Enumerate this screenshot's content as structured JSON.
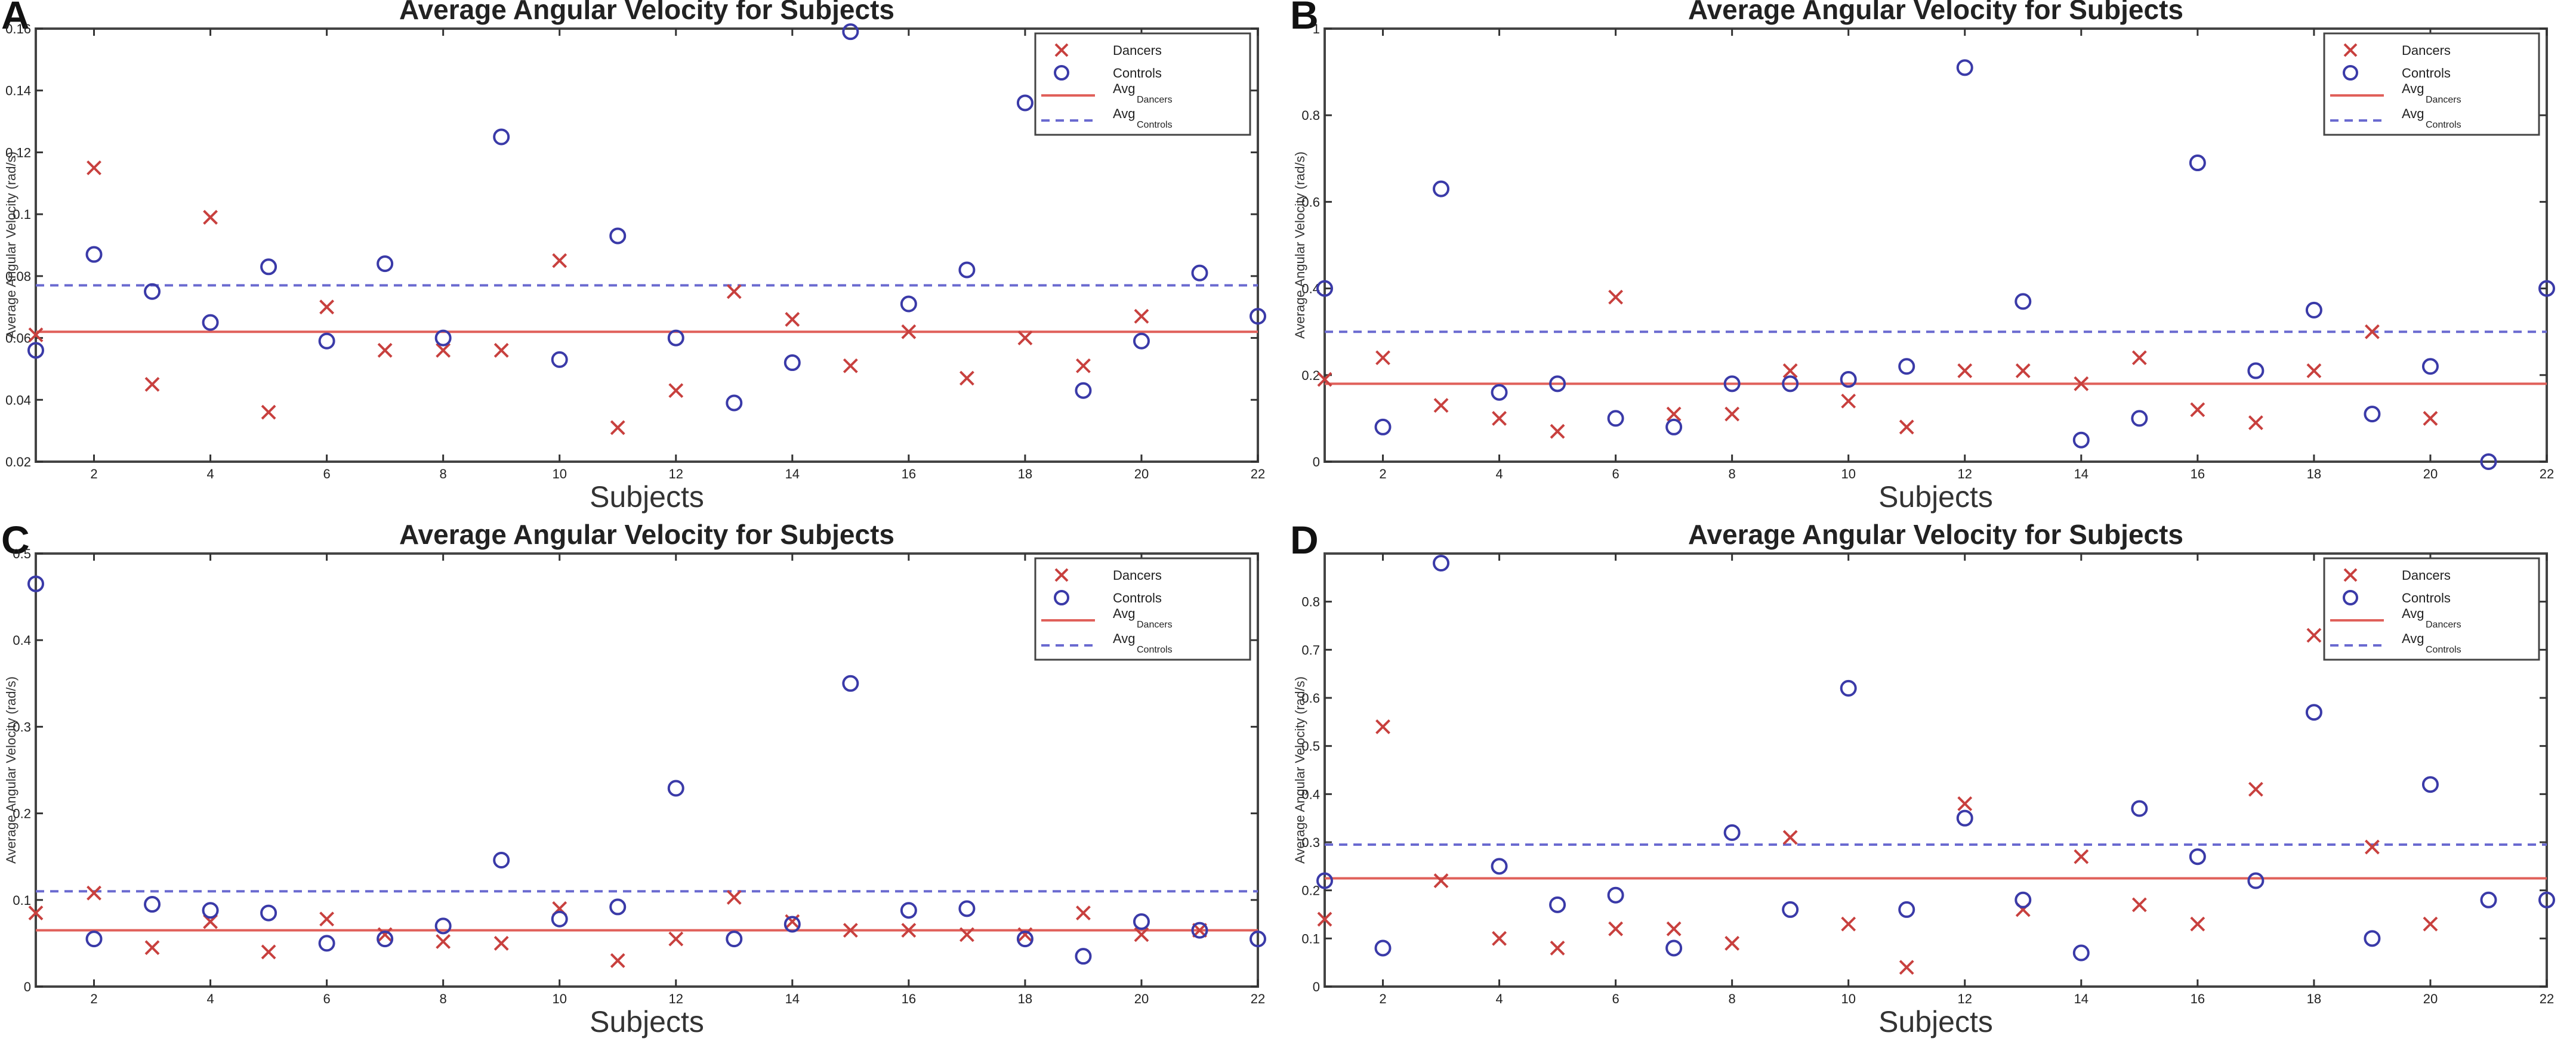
{
  "chart_data": [
    {
      "panel": "A",
      "type": "scatter",
      "title": "Average Angular Velocity for Subjects",
      "xlabel": "Subjects",
      "ylabel": "Average Angular Velocity (rad/s)",
      "xlim": [
        1,
        22
      ],
      "ylim": [
        0.02,
        0.16
      ],
      "xticks": [
        2,
        4,
        6,
        8,
        10,
        12,
        14,
        16,
        18,
        20,
        22
      ],
      "yticks": [
        0.02,
        0.04,
        0.06,
        0.08,
        0.1,
        0.12,
        0.14,
        0.16
      ],
      "ytick_labels": [
        "0.02",
        "0.04",
        "0.06",
        "0.08",
        "0.1",
        "0.12",
        "0.14",
        "0.16"
      ],
      "legend": {
        "dancers": "Dancers",
        "controls": "Controls",
        "avg_base": "Avg",
        "avg_dancers_sub": "Dancers",
        "avg_controls_sub": "Controls"
      },
      "series": [
        {
          "name": "Dancers",
          "marker": "x",
          "x": [
            1,
            2,
            3,
            4,
            5,
            6,
            7,
            8,
            9,
            10,
            11,
            12,
            13,
            14,
            15,
            16,
            17,
            18,
            19,
            20
          ],
          "values": [
            0.061,
            0.115,
            0.045,
            0.099,
            0.036,
            0.07,
            0.056,
            0.056,
            0.056,
            0.085,
            0.031,
            0.043,
            0.075,
            0.066,
            0.051,
            0.062,
            0.047,
            0.06,
            0.051,
            0.067
          ]
        },
        {
          "name": "Controls",
          "marker": "o",
          "x": [
            1,
            2,
            3,
            4,
            5,
            6,
            7,
            8,
            9,
            10,
            11,
            12,
            13,
            14,
            15,
            16,
            17,
            18,
            19,
            20,
            21,
            22
          ],
          "values": [
            0.056,
            0.087,
            0.075,
            0.065,
            0.083,
            0.059,
            0.084,
            0.06,
            0.125,
            0.053,
            0.093,
            0.06,
            0.039,
            0.052,
            0.159,
            0.071,
            0.082,
            0.136,
            0.043,
            0.059,
            0.081,
            0.067
          ]
        }
      ],
      "avg_dancers": 0.062,
      "avg_controls": 0.077
    },
    {
      "panel": "B",
      "type": "scatter",
      "title": "Average Angular Velocity for Subjects",
      "xlabel": "Subjects",
      "ylabel": "Average Angular Velocity (rad/s)",
      "xlim": [
        1,
        22
      ],
      "ylim": [
        0,
        1
      ],
      "xticks": [
        2,
        4,
        6,
        8,
        10,
        12,
        14,
        16,
        18,
        20,
        22
      ],
      "yticks": [
        0,
        0.2,
        0.4,
        0.6,
        0.8,
        1
      ],
      "ytick_labels": [
        "0",
        "0.2",
        "0.4",
        "0.6",
        "0.8",
        "1"
      ],
      "legend": {
        "dancers": "Dancers",
        "controls": "Controls",
        "avg_base": "Avg",
        "avg_dancers_sub": "Dancers",
        "avg_controls_sub": "Controls"
      },
      "series": [
        {
          "name": "Dancers",
          "marker": "x",
          "x": [
            1,
            2,
            3,
            4,
            5,
            6,
            7,
            8,
            9,
            10,
            11,
            12,
            13,
            14,
            15,
            16,
            17,
            18,
            19,
            20
          ],
          "values": [
            0.19,
            0.24,
            0.13,
            0.1,
            0.07,
            0.38,
            0.11,
            0.11,
            0.21,
            0.14,
            0.08,
            0.21,
            0.21,
            0.18,
            0.24,
            0.12,
            0.09,
            0.21,
            0.3,
            0.1
          ]
        },
        {
          "name": "Controls",
          "marker": "o",
          "x": [
            1,
            2,
            3,
            4,
            5,
            6,
            7,
            8,
            9,
            10,
            11,
            12,
            13,
            14,
            15,
            16,
            17,
            18,
            19,
            20,
            21,
            22
          ],
          "values": [
            0.4,
            0.08,
            0.63,
            0.16,
            0.18,
            0.1,
            0.08,
            0.18,
            0.18,
            0.19,
            0.22,
            0.91,
            0.37,
            0.05,
            0.1,
            0.69,
            0.21,
            0.35,
            0.11,
            0.22,
            0,
            0.4
          ]
        }
      ],
      "avg_dancers": 0.18,
      "avg_controls": 0.3
    },
    {
      "panel": "C",
      "type": "scatter",
      "title": "Average Angular Velocity for Subjects",
      "xlabel": "Subjects",
      "ylabel": "Average Angular Velocity (rad/s)",
      "xlim": [
        1,
        22
      ],
      "ylim": [
        0,
        0.5
      ],
      "xticks": [
        2,
        4,
        6,
        8,
        10,
        12,
        14,
        16,
        18,
        20,
        22
      ],
      "yticks": [
        0,
        0.1,
        0.2,
        0.3,
        0.4,
        0.5
      ],
      "ytick_labels": [
        "0",
        "0.1",
        "0.2",
        "0.3",
        "0.4",
        "0.5"
      ],
      "legend": {
        "dancers": "Dancers",
        "controls": "Controls",
        "avg_base": "Avg",
        "avg_dancers_sub": "Dancers",
        "avg_controls_sub": "Controls"
      },
      "series": [
        {
          "name": "Dancers",
          "marker": "x",
          "x": [
            1,
            2,
            3,
            4,
            5,
            6,
            7,
            8,
            9,
            10,
            11,
            12,
            13,
            14,
            15,
            16,
            17,
            18,
            19,
            20,
            21
          ],
          "values": [
            0.085,
            0.108,
            0.045,
            0.075,
            0.04,
            0.078,
            0.06,
            0.052,
            0.05,
            0.09,
            0.03,
            0.055,
            0.103,
            0.075,
            0.065,
            0.065,
            0.06,
            0.06,
            0.085,
            0.06,
            0.065
          ]
        },
        {
          "name": "Controls",
          "marker": "o",
          "x": [
            1,
            2,
            3,
            4,
            5,
            6,
            7,
            8,
            9,
            10,
            11,
            12,
            13,
            14,
            15,
            16,
            17,
            18,
            19,
            20,
            21,
            22
          ],
          "values": [
            0.465,
            0.055,
            0.095,
            0.088,
            0.085,
            0.05,
            0.055,
            0.07,
            0.146,
            0.078,
            0.092,
            0.229,
            0.055,
            0.072,
            0.35,
            0.088,
            0.09,
            0.055,
            0.035,
            0.075,
            0.065,
            0.055
          ]
        }
      ],
      "avg_dancers": 0.065,
      "avg_controls": 0.11
    },
    {
      "panel": "D",
      "type": "scatter",
      "title": "Average Angular Velocity for Subjects",
      "xlabel": "Subjects",
      "ylabel": "Average Angular Velocity (rad/s)",
      "xlim": [
        1,
        22
      ],
      "ylim": [
        0,
        0.9
      ],
      "xticks": [
        2,
        4,
        6,
        8,
        10,
        12,
        14,
        16,
        18,
        20,
        22
      ],
      "yticks": [
        0,
        0.1,
        0.2,
        0.3,
        0.4,
        0.5,
        0.6,
        0.7,
        0.8
      ],
      "ytick_labels": [
        "0",
        "0.1",
        "0.2",
        "0.3",
        "0.4",
        "0.5",
        "0.6",
        "0.7",
        "0.8"
      ],
      "legend": {
        "dancers": "Dancers",
        "controls": "Controls",
        "avg_base": "Avg",
        "avg_dancers_sub": "Dancers",
        "avg_controls_sub": "Controls"
      },
      "series": [
        {
          "name": "Dancers",
          "marker": "x",
          "x": [
            1,
            2,
            3,
            4,
            5,
            6,
            7,
            8,
            9,
            10,
            11,
            12,
            13,
            14,
            15,
            16,
            17,
            18,
            19,
            20
          ],
          "values": [
            0.14,
            0.54,
            0.22,
            0.1,
            0.08,
            0.12,
            0.12,
            0.09,
            0.31,
            0.13,
            0.04,
            0.38,
            0.16,
            0.27,
            0.17,
            0.13,
            0.41,
            0.73,
            0.29,
            0.13
          ]
        },
        {
          "name": "Controls",
          "marker": "o",
          "x": [
            1,
            2,
            3,
            4,
            5,
            6,
            7,
            8,
            9,
            10,
            11,
            12,
            13,
            14,
            15,
            16,
            17,
            18,
            19,
            20,
            21,
            22
          ],
          "values": [
            0.22,
            0.08,
            0.88,
            0.25,
            0.17,
            0.19,
            0.08,
            0.32,
            0.16,
            0.62,
            0.16,
            0.35,
            0.18,
            0.07,
            0.37,
            0.27,
            0.22,
            0.57,
            0.1,
            0.42,
            0.18,
            0.18
          ]
        }
      ],
      "avg_dancers": 0.225,
      "avg_controls": 0.295
    }
  ]
}
